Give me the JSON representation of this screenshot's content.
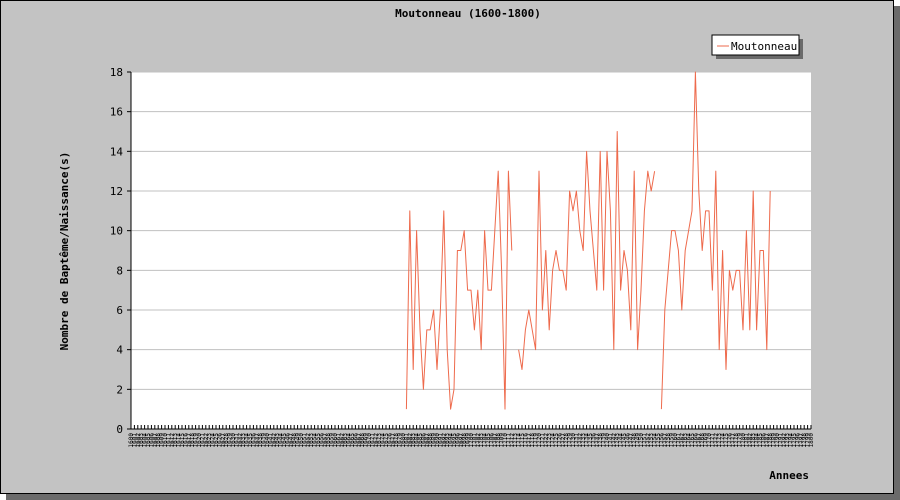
{
  "chart_data": {
    "type": "line",
    "title": "Moutonneau (1600-1800)",
    "xlabel": "Annees",
    "ylabel": "Nombre de Baptême/Naissance(s)",
    "ylim": [
      0,
      18
    ],
    "yticks": [
      0,
      2,
      4,
      6,
      8,
      10,
      12,
      14,
      16,
      18
    ],
    "xlim": [
      1600,
      1800
    ],
    "grid": "horizontal",
    "legend_position": "top-right",
    "line_color": "#ee6a4c",
    "series": [
      {
        "name": "Moutonneau",
        "points": [
          {
            "x": 1681,
            "y": 1
          },
          {
            "x": 1682,
            "y": 11
          },
          {
            "x": 1683,
            "y": 3
          },
          {
            "x": 1684,
            "y": 10
          },
          {
            "x": 1685,
            "y": 5
          },
          {
            "x": 1686,
            "y": 2
          },
          {
            "x": 1687,
            "y": 5
          },
          {
            "x": 1688,
            "y": 5
          },
          {
            "x": 1689,
            "y": 6
          },
          {
            "x": 1690,
            "y": 3
          },
          {
            "x": 1691,
            "y": 6
          },
          {
            "x": 1692,
            "y": 11
          },
          {
            "x": 1693,
            "y": 4
          },
          {
            "x": 1694,
            "y": 1
          },
          {
            "x": 1695,
            "y": 2
          },
          {
            "x": 1696,
            "y": 9
          },
          {
            "x": 1697,
            "y": 9
          },
          {
            "x": 1698,
            "y": 10
          },
          {
            "x": 1699,
            "y": 7
          },
          {
            "x": 1700,
            "y": 7
          },
          {
            "x": 1701,
            "y": 5
          },
          {
            "x": 1702,
            "y": 7
          },
          {
            "x": 1703,
            "y": 4
          },
          {
            "x": 1704,
            "y": 10
          },
          {
            "x": 1705,
            "y": 7
          },
          {
            "x": 1706,
            "y": 7
          },
          {
            "x": 1707,
            "y": 10
          },
          {
            "x": 1708,
            "y": 13
          },
          {
            "x": 1709,
            "y": 8
          },
          {
            "x": 1710,
            "y": 1
          },
          {
            "x": 1711,
            "y": 13
          },
          {
            "x": 1712,
            "y": 9
          },
          {
            "x": 1713,
            "y": null
          },
          {
            "x": 1714,
            "y": 4
          },
          {
            "x": 1715,
            "y": 3
          },
          {
            "x": 1716,
            "y": 5
          },
          {
            "x": 1717,
            "y": 6
          },
          {
            "x": 1718,
            "y": 5
          },
          {
            "x": 1719,
            "y": 4
          },
          {
            "x": 1720,
            "y": 13
          },
          {
            "x": 1721,
            "y": 6
          },
          {
            "x": 1722,
            "y": 9
          },
          {
            "x": 1723,
            "y": 5
          },
          {
            "x": 1724,
            "y": 8
          },
          {
            "x": 1725,
            "y": 9
          },
          {
            "x": 1726,
            "y": 8
          },
          {
            "x": 1727,
            "y": 8
          },
          {
            "x": 1728,
            "y": 7
          },
          {
            "x": 1729,
            "y": 12
          },
          {
            "x": 1730,
            "y": 11
          },
          {
            "x": 1731,
            "y": 12
          },
          {
            "x": 1732,
            "y": 10
          },
          {
            "x": 1733,
            "y": 9
          },
          {
            "x": 1734,
            "y": 14
          },
          {
            "x": 1735,
            "y": 11
          },
          {
            "x": 1736,
            "y": 9
          },
          {
            "x": 1737,
            "y": 7
          },
          {
            "x": 1738,
            "y": 14
          },
          {
            "x": 1739,
            "y": 7
          },
          {
            "x": 1740,
            "y": 14
          },
          {
            "x": 1741,
            "y": 11
          },
          {
            "x": 1742,
            "y": 4
          },
          {
            "x": 1743,
            "y": 15
          },
          {
            "x": 1744,
            "y": 7
          },
          {
            "x": 1745,
            "y": 9
          },
          {
            "x": 1746,
            "y": 8
          },
          {
            "x": 1747,
            "y": 5
          },
          {
            "x": 1748,
            "y": 13
          },
          {
            "x": 1749,
            "y": 4
          },
          {
            "x": 1750,
            "y": 7
          },
          {
            "x": 1751,
            "y": 11
          },
          {
            "x": 1752,
            "y": 13
          },
          {
            "x": 1753,
            "y": 12
          },
          {
            "x": 1754,
            "y": 13
          },
          {
            "x": 1755,
            "y": null
          },
          {
            "x": 1756,
            "y": 1
          },
          {
            "x": 1757,
            "y": 6
          },
          {
            "x": 1758,
            "y": 8
          },
          {
            "x": 1759,
            "y": 10
          },
          {
            "x": 1760,
            "y": 10
          },
          {
            "x": 1761,
            "y": 9
          },
          {
            "x": 1762,
            "y": 6
          },
          {
            "x": 1763,
            "y": 9
          },
          {
            "x": 1764,
            "y": 10
          },
          {
            "x": 1765,
            "y": 11
          },
          {
            "x": 1766,
            "y": 18
          },
          {
            "x": 1767,
            "y": 12
          },
          {
            "x": 1768,
            "y": 9
          },
          {
            "x": 1769,
            "y": 11
          },
          {
            "x": 1770,
            "y": 11
          },
          {
            "x": 1771,
            "y": 7
          },
          {
            "x": 1772,
            "y": 13
          },
          {
            "x": 1773,
            "y": 4
          },
          {
            "x": 1774,
            "y": 9
          },
          {
            "x": 1775,
            "y": 3
          },
          {
            "x": 1776,
            "y": 8
          },
          {
            "x": 1777,
            "y": 7
          },
          {
            "x": 1778,
            "y": 8
          },
          {
            "x": 1779,
            "y": 8
          },
          {
            "x": 1780,
            "y": 5
          },
          {
            "x": 1781,
            "y": 10
          },
          {
            "x": 1782,
            "y": 5
          },
          {
            "x": 1783,
            "y": 12
          },
          {
            "x": 1784,
            "y": 5
          },
          {
            "x": 1785,
            "y": 9
          },
          {
            "x": 1786,
            "y": 9
          },
          {
            "x": 1787,
            "y": 4
          },
          {
            "x": 1788,
            "y": 12
          }
        ]
      }
    ]
  }
}
